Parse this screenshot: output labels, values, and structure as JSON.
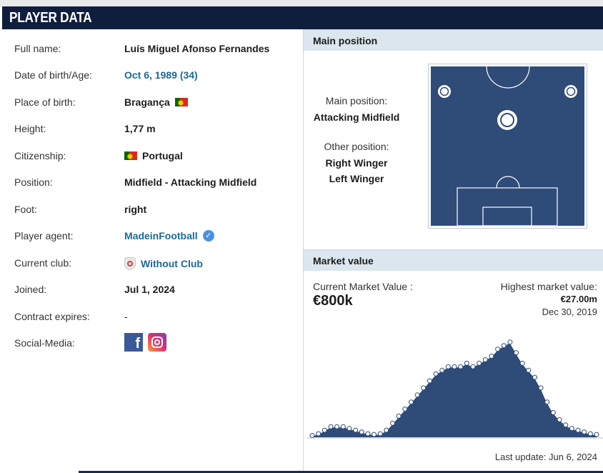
{
  "header": {
    "title": "PLAYER DATA"
  },
  "player": {
    "rows": [
      {
        "label": "Full name:",
        "value": "Luís Miguel Afonso Fernandes"
      },
      {
        "label": "Date of birth/Age:",
        "value": "Oct 6, 1989 (34)"
      },
      {
        "label": "Place of birth:",
        "value": "Bragança"
      },
      {
        "label": "Height:",
        "value": "1,77 m"
      },
      {
        "label": "Citizenship:",
        "value": "Portugal"
      },
      {
        "label": "Position:",
        "value": "Midfield - Attacking Midfield"
      },
      {
        "label": "Foot:",
        "value": "right"
      },
      {
        "label": "Player agent:",
        "value": "MadeinFootball"
      },
      {
        "label": "Current club:",
        "value": "Without Club"
      },
      {
        "label": "Joined:",
        "value": "Jul 1, 2024"
      },
      {
        "label": "Contract expires:",
        "value": "-"
      },
      {
        "label": "Social-Media:",
        "value": ""
      }
    ],
    "icons": {
      "flag": "portugal-flag-icon",
      "agent": "verified-check-icon",
      "club": "without-club-icon",
      "social": [
        "facebook-icon",
        "instagram-icon"
      ]
    }
  },
  "main_position": {
    "heading": "Main position",
    "main_label": "Main position:",
    "main_value": "Attacking Midfield",
    "other_label": "Other position:",
    "other_values": [
      "Right Winger",
      "Left Winger"
    ]
  },
  "market_value": {
    "heading": "Market value",
    "current_label": "Current Market Value :",
    "current_value": "€800k",
    "highest_label": "Highest market value:",
    "highest_value": "€27.00m",
    "highest_date": "Dec 30, 2019",
    "last_update": "Last update: Jun 6, 2024"
  },
  "chart_data": {
    "type": "area",
    "title": "",
    "xlabel": "",
    "ylabel": "",
    "values": [
      0.5,
      1,
      2,
      3,
      3,
      3,
      2.5,
      2,
      1.5,
      1,
      0.8,
      1,
      2,
      4,
      6,
      8,
      10,
      12,
      14,
      16,
      18,
      19,
      20,
      20,
      20,
      21,
      20,
      21,
      22,
      23,
      25,
      26,
      27,
      24,
      21,
      19,
      17,
      14,
      10,
      7,
      5,
      3.5,
      2.5,
      2,
      1.5,
      1,
      0.8
    ],
    "ylim": [
      0,
      30
    ],
    "colors": {
      "fill": "#2f4b78",
      "line": "#ffffff"
    }
  }
}
